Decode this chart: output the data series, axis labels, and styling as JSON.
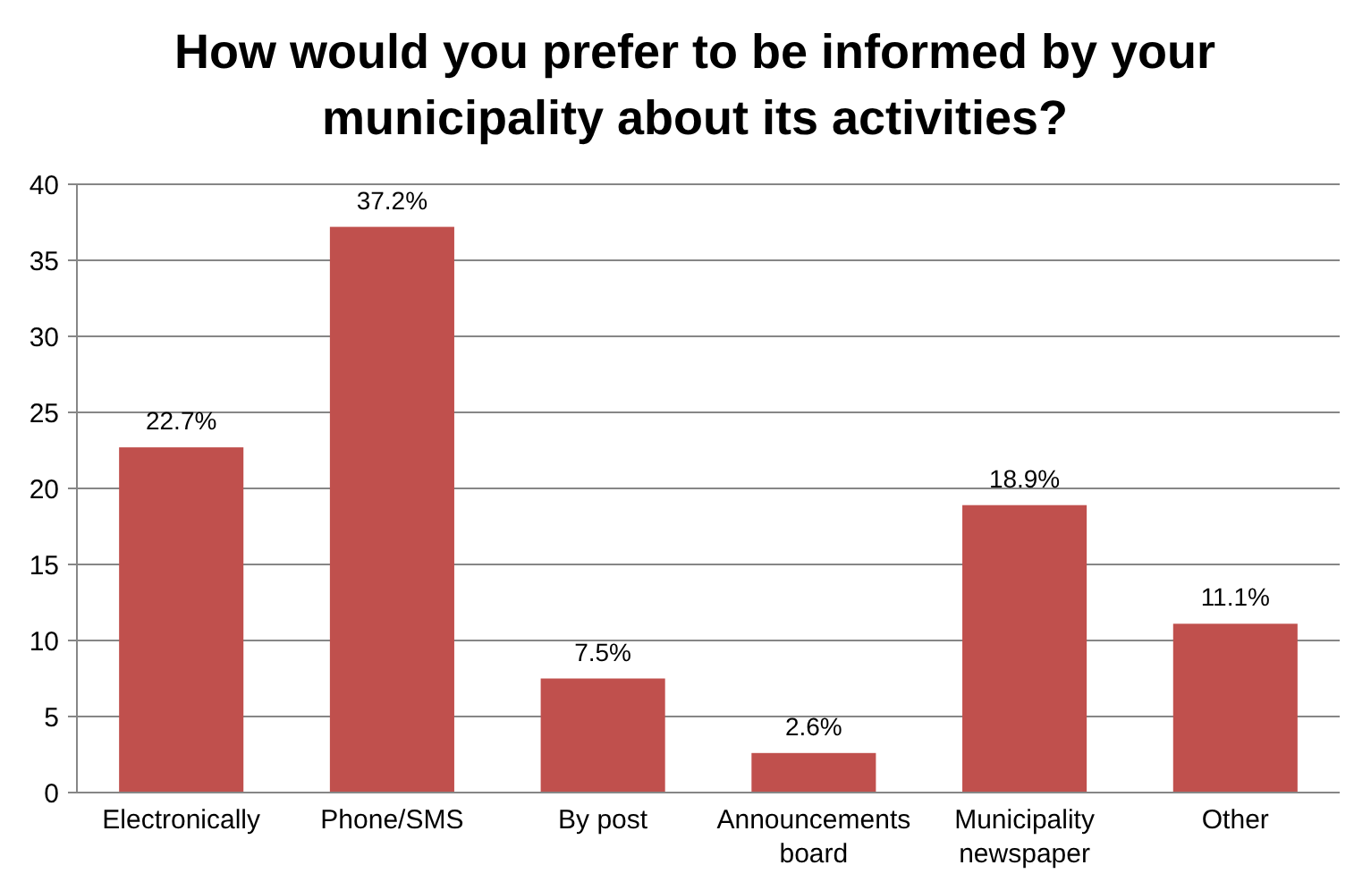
{
  "chart_data": {
    "type": "bar",
    "title": "How would you prefer to be informed by your municipality about its activities?",
    "categories": [
      "Electronically",
      "Phone/SMS",
      "By post",
      "Announcements board",
      "Municipality newspaper",
      "Other"
    ],
    "values": [
      22.7,
      37.2,
      7.5,
      2.6,
      18.9,
      11.1
    ],
    "value_labels": [
      "22.7%",
      "37.2%",
      "7.5%",
      "2.6%",
      "18.9%",
      "11.1%"
    ],
    "color": "#c0504d",
    "ylim": [
      0,
      40
    ],
    "yticks": [
      0,
      5,
      10,
      15,
      20,
      25,
      30,
      35,
      40
    ],
    "grid": "y"
  }
}
